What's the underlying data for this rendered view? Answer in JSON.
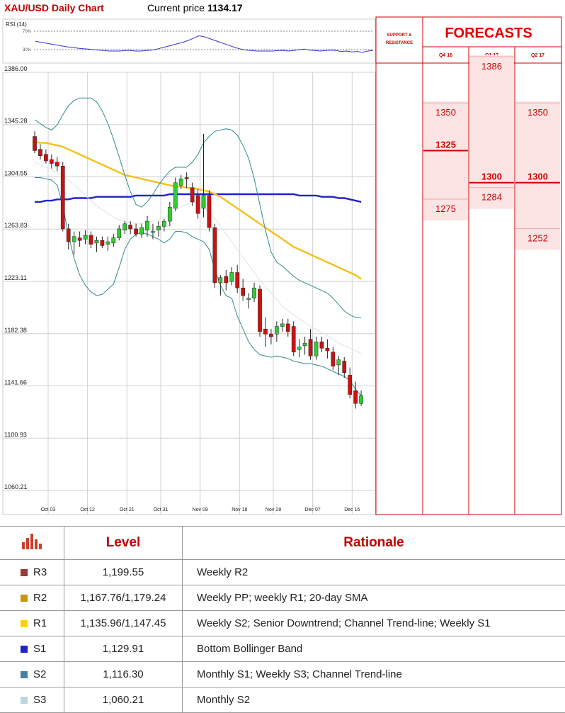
{
  "header": {
    "title": "XAU/USD Daily Chart",
    "price_label": "Current price",
    "price_value": "1134.17"
  },
  "rsi": {
    "label": "RSI (14)",
    "level_high": "70%",
    "level_low": "30%",
    "values": [
      48,
      46,
      44,
      42,
      40,
      38,
      36,
      35,
      33,
      32,
      31,
      30,
      29,
      28,
      27,
      27,
      27,
      28,
      28,
      27,
      27,
      28,
      29,
      31,
      34,
      37,
      40,
      43,
      46,
      50,
      55,
      60,
      58,
      54,
      50,
      46,
      42,
      38,
      34,
      31,
      29,
      28,
      27,
      27,
      27,
      27,
      28,
      28,
      27,
      28,
      30,
      31,
      29,
      28,
      27,
      28,
      29,
      28,
      26,
      27,
      25,
      26,
      24,
      27,
      28
    ]
  },
  "chart_data": {
    "type": "candlestick",
    "title": "XAU/USD Daily Chart",
    "y_ticks": [
      "1386.00",
      "1345.28",
      "1304.55",
      "1263.83",
      "1223.11",
      "1182.38",
      "1141.66",
      "1100.93",
      "1060.21"
    ],
    "ylim": [
      1060.21,
      1386.0
    ],
    "x_ticks": [
      {
        "label": "Oct 03",
        "index": 0
      },
      {
        "label": "Oct 12",
        "index": 7
      },
      {
        "label": "Oct 21",
        "index": 14
      },
      {
        "label": "Oct 31",
        "index": 20
      },
      {
        "label": "Nov 09",
        "index": 27
      },
      {
        "label": "Nov 18",
        "index": 34
      },
      {
        "label": "Nov 28",
        "index": 40
      },
      {
        "label": "Dec 07",
        "index": 47
      },
      {
        "label": "Dec 16",
        "index": 54
      }
    ],
    "candles": [
      [
        1336,
        1340,
        1323,
        1325
      ],
      [
        1326,
        1330,
        1318,
        1321
      ],
      [
        1322,
        1326,
        1315,
        1317
      ],
      [
        1318,
        1322,
        1311,
        1315
      ],
      [
        1316,
        1320,
        1309,
        1313
      ],
      [
        1313,
        1316,
        1262,
        1264
      ],
      [
        1264,
        1268,
        1248,
        1254
      ],
      [
        1254,
        1262,
        1244,
        1258
      ],
      [
        1257,
        1262,
        1250,
        1255
      ],
      [
        1256,
        1263,
        1252,
        1259
      ],
      [
        1259,
        1262,
        1249,
        1252
      ],
      [
        1253,
        1258,
        1246,
        1255
      ],
      [
        1255,
        1258,
        1249,
        1251
      ],
      [
        1252,
        1258,
        1247,
        1254
      ],
      [
        1253,
        1260,
        1250,
        1257
      ],
      [
        1257,
        1267,
        1255,
        1264
      ],
      [
        1263,
        1270,
        1260,
        1268
      ],
      [
        1267,
        1270,
        1260,
        1264
      ],
      [
        1264,
        1268,
        1258,
        1260
      ],
      [
        1260,
        1268,
        1257,
        1265
      ],
      [
        1263,
        1274,
        1258,
        1270
      ],
      [
        1262,
        1268,
        1256,
        1262
      ],
      [
        1263,
        1270,
        1258,
        1266
      ],
      [
        1266,
        1272,
        1262,
        1270
      ],
      [
        1270,
        1285,
        1266,
        1281
      ],
      [
        1280,
        1304,
        1278,
        1300
      ],
      [
        1298,
        1306,
        1295,
        1303
      ],
      [
        1304,
        1308,
        1296,
        1303
      ],
      [
        1296,
        1300,
        1282,
        1285
      ],
      [
        1290,
        1295,
        1272,
        1276
      ],
      [
        1280,
        1338,
        1273,
        1290
      ],
      [
        1290,
        1294,
        1262,
        1265
      ],
      [
        1265,
        1268,
        1218,
        1222
      ],
      [
        1222,
        1228,
        1212,
        1226
      ],
      [
        1227,
        1232,
        1216,
        1222
      ],
      [
        1223,
        1234,
        1220,
        1230
      ],
      [
        1230,
        1236,
        1214,
        1218
      ],
      [
        1218,
        1225,
        1208,
        1212
      ],
      [
        1209,
        1214,
        1202,
        1210
      ],
      [
        1210,
        1222,
        1207,
        1218
      ],
      [
        1217,
        1220,
        1180,
        1184
      ],
      [
        1186,
        1195,
        1172,
        1182
      ],
      [
        1182,
        1186,
        1174,
        1180
      ],
      [
        1182,
        1192,
        1176,
        1188
      ],
      [
        1188,
        1194,
        1184,
        1190
      ],
      [
        1190,
        1194,
        1180,
        1184
      ],
      [
        1188,
        1192,
        1165,
        1168
      ],
      [
        1170,
        1178,
        1164,
        1172
      ],
      [
        1173,
        1180,
        1166,
        1175
      ],
      [
        1178,
        1186,
        1162,
        1165
      ],
      [
        1165,
        1180,
        1162,
        1176
      ],
      [
        1176,
        1180,
        1168,
        1171
      ],
      [
        1171,
        1178,
        1163,
        1169
      ],
      [
        1168,
        1172,
        1154,
        1157
      ],
      [
        1158,
        1165,
        1150,
        1162
      ],
      [
        1161,
        1164,
        1148,
        1152
      ],
      [
        1150,
        1156,
        1132,
        1135
      ],
      [
        1138,
        1145,
        1124,
        1128
      ],
      [
        1128,
        1138,
        1126,
        1134
      ]
    ],
    "series": [
      {
        "name": "",
        "color": "#1f22cc",
        "values": [
          1285,
          1285,
          1286,
          1286,
          1287,
          1287,
          1287,
          1288,
          1288,
          1288,
          1288,
          1289,
          1289,
          1289,
          1289,
          1289,
          1289,
          1289,
          1290,
          1290,
          1290,
          1290,
          1290,
          1290,
          1291,
          1291,
          1291,
          1291,
          1291,
          1291,
          1291,
          1291,
          1291,
          1291,
          1291,
          1291,
          1291,
          1291,
          1291,
          1291,
          1291,
          1291,
          1291,
          1291,
          1291,
          1291,
          1291,
          1290,
          1290,
          1290,
          1290,
          1289,
          1289,
          1289,
          1288,
          1288,
          1287,
          1286,
          1285
        ]
      },
      {
        "name": "",
        "color": "#f5c01a",
        "values": [
          1332,
          1331,
          1331,
          1330,
          1329,
          1328,
          1326,
          1324,
          1322,
          1320,
          1318,
          1316,
          1314,
          1312,
          1310,
          1308,
          1306,
          1305,
          1304,
          1303,
          1302,
          1301,
          1300,
          1299,
          1298,
          1297,
          1297,
          1296,
          1296,
          1295,
          1294,
          1293,
          1291,
          1289,
          1286,
          1283,
          1280,
          1277,
          1274,
          1271,
          1268,
          1265,
          1262,
          1259,
          1256,
          1253,
          1250,
          1248,
          1246,
          1244,
          1242,
          1240,
          1238,
          1236,
          1234,
          1232,
          1230,
          1228,
          1225
        ]
      },
      {
        "name": "",
        "color": "#e3e3e3",
        "values": [
          1316,
          1314,
          1312,
          1310,
          1308,
          1305,
          1302,
          1298,
          1294,
          1290,
          1286,
          1282,
          1279,
          1276,
          1273,
          1271,
          1270,
          1269,
          1268,
          1268,
          1269,
          1270,
          1271,
          1273,
          1275,
          1278,
          1281,
          1283,
          1285,
          1284,
          1281,
          1277,
          1272,
          1266,
          1260,
          1254,
          1248,
          1242,
          1236,
          1230,
          1224,
          1219,
          1214,
          1209,
          1204,
          1200,
          1197,
          1194,
          1191,
          1188,
          1186,
          1183,
          1181,
          1178,
          1175,
          1173,
          1171,
          1169,
          1167
        ]
      },
      {
        "name": "",
        "color": "#2f8a8a",
        "values": [
          1349,
          1346,
          1343,
          1341,
          1345,
          1353,
          1360,
          1364,
          1366,
          1366,
          1366,
          1363,
          1356,
          1346,
          1334,
          1320,
          1306,
          1293,
          1283,
          1281,
          1285,
          1291,
          1298,
          1304,
          1309,
          1312,
          1312,
          1312,
          1316,
          1322,
          1331,
          1336,
          1340,
          1341,
          1342,
          1341,
          1337,
          1329,
          1319,
          1303,
          1283,
          1263,
          1246,
          1238,
          1235,
          1231,
          1227,
          1224,
          1222,
          1220,
          1218,
          1216,
          1214,
          1210,
          1205,
          1200,
          1197,
          1195,
          1195
        ]
      },
      {
        "name": "",
        "color": "#2f8a8a",
        "values": [
          1304,
          1304,
          1303,
          1302,
          1298,
          1282,
          1259,
          1241,
          1228,
          1220,
          1215,
          1212,
          1213,
          1217,
          1221,
          1234,
          1248,
          1256,
          1260,
          1261,
          1260,
          1258,
          1256,
          1253,
          1256,
          1262,
          1262,
          1261,
          1258,
          1256,
          1254,
          1248,
          1232,
          1220,
          1212,
          1210,
          1196,
          1186,
          1176,
          1170,
          1166,
          1165,
          1164,
          1165,
          1164,
          1163,
          1161,
          1160,
          1159,
          1159,
          1158,
          1157,
          1155,
          1153,
          1151,
          1149,
          1146,
          1139,
          1134
        ]
      }
    ],
    "candle_colors": {
      "up": "#33cc33",
      "down": "#cc1111"
    },
    "price_tags": [
      {
        "label": "1199.55",
        "value": 1199.55,
        "color": "#5a0b2a",
        "text_color": "#5a0b2a"
      },
      {
        "label": "1167.76",
        "value": 1167.76,
        "color": "#e0be78",
        "text_color": "#d4a94a"
      },
      {
        "label": "1135.96",
        "value": 1135.96,
        "color": "#f5d000",
        "text_color": "#e0b800"
      },
      {
        "label": "1129.91",
        "value": 1129.91,
        "color": "#1f22cc",
        "text_color": "#1f22cc"
      },
      {
        "label": "1116.30",
        "value": 1116.3,
        "color": "#4a7fa8",
        "text_color": "#4a7fa8"
      },
      {
        "label": "1060.21",
        "value": 1060.21,
        "color": "#bcd6e0",
        "text_color": "#aacbd6"
      }
    ]
  },
  "side_panel": {
    "sr_label_1": "SUPPORT &",
    "sr_label_2": "RESISTANCE",
    "forecasts_title": "FORECASTS",
    "columns": [
      {
        "name": "Q4 16",
        "range": [
          1275,
          1350
        ],
        "levels": [
          {
            "label": "1350",
            "value": 1350,
            "bold": false
          },
          {
            "label": "1325",
            "value": 1325,
            "bold": true
          },
          {
            "label": "1275",
            "value": 1275,
            "bold": false
          }
        ]
      },
      {
        "name": "Q1 17",
        "range": [
          1284,
          1386
        ],
        "levels": [
          {
            "label": "1386",
            "value": 1386,
            "bold": false
          },
          {
            "label": "1300",
            "value": 1300,
            "bold": true
          },
          {
            "label": "1284",
            "value": 1284,
            "bold": false
          }
        ]
      },
      {
        "name": "Q2 17",
        "range": [
          1252,
          1350
        ],
        "levels": [
          {
            "label": "1350",
            "value": 1350,
            "bold": false
          },
          {
            "label": "1300",
            "value": 1300,
            "bold": true
          },
          {
            "label": "1252",
            "value": 1252,
            "bold": false
          }
        ]
      }
    ]
  },
  "table": {
    "header_level": "Level",
    "header_rationale": "Rationale",
    "rows": [
      {
        "name": "R3",
        "color": "#9a3a3a",
        "level": "1,199.55",
        "rationale": "Weekly R2"
      },
      {
        "name": "R2",
        "color": "#c9960a",
        "level": "1,167.76/1,179.24",
        "rationale": "Weekly PP; weekly R1; 20-day SMA"
      },
      {
        "name": "R1",
        "color": "#ffd200",
        "level": "1,135.96/1,147.45",
        "rationale": "Weekly S2; Senior Downtrend; Channel Trend-line; Weekly S1"
      },
      {
        "name": "S1",
        "color": "#1f22cc",
        "level": "1,129.91",
        "rationale": "Bottom Bollinger Band"
      },
      {
        "name": "S2",
        "color": "#4a7fa8",
        "level": "1,116.30",
        "rationale": "Monthly S1; Weekly S3; Channel Trend-line"
      },
      {
        "name": "S3",
        "color": "#bcd6e0",
        "level": "1,060.21",
        "rationale": "Monthly S2"
      }
    ]
  }
}
